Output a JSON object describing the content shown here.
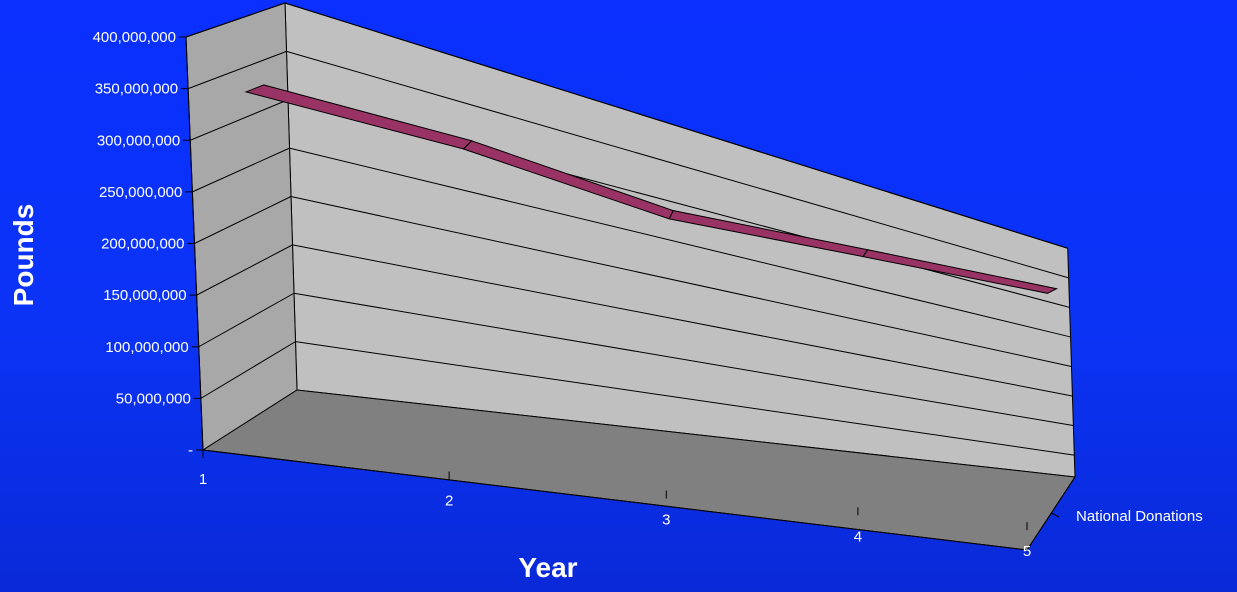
{
  "chart_data": {
    "type": "line",
    "style": "3d-ribbon",
    "categories": [
      "1",
      "2",
      "3",
      "4",
      "5"
    ],
    "series": [
      {
        "name": "National Donations",
        "values": [
          325000000,
          325000000,
          305000000,
          322000000,
          342000000
        ]
      }
    ],
    "xlabel": "Year",
    "ylabel": "Pounds",
    "ylim": [
      0,
      400000000
    ],
    "y_ticks": [
      0,
      50000000,
      100000000,
      150000000,
      200000000,
      250000000,
      300000000,
      350000000,
      400000000
    ],
    "y_tick_labels": [
      "-",
      "50,000,000",
      "100,000,000",
      "150,000,000",
      "200,000,000",
      "250,000,000",
      "300,000,000",
      "350,000,000",
      "400,000,000"
    ],
    "grid": true,
    "colors": {
      "background": "#0b33f5",
      "wall": "#c0c0c0",
      "floor": "#808080",
      "series": "#993366",
      "text": "#ffffff"
    }
  }
}
